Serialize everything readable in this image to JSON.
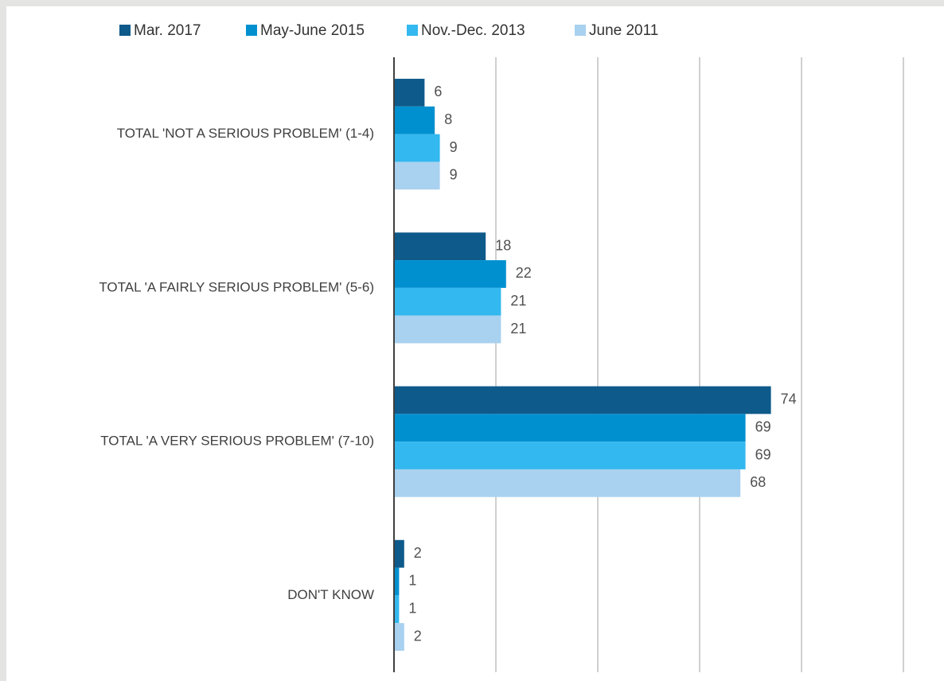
{
  "chart_data": {
    "type": "bar",
    "orientation": "horizontal",
    "categories": [
      "TOTAL 'NOT A SERIOUS PROBLEM' (1-4)",
      "TOTAL 'A FAIRLY SERIOUS PROBLEM' (5-6)",
      "TOTAL 'A VERY SERIOUS PROBLEM' (7-10)",
      "DON'T KNOW"
    ],
    "series": [
      {
        "name": "Mar. 2017",
        "color": "#0e5a8a",
        "values": [
          6,
          18,
          74,
          2
        ]
      },
      {
        "name": "May-June 2015",
        "color": "#0090d0",
        "values": [
          8,
          22,
          69,
          1
        ]
      },
      {
        "name": "Nov.-Dec. 2013",
        "color": "#33b8ef",
        "values": [
          9,
          21,
          69,
          1
        ]
      },
      {
        "name": "June 2011",
        "color": "#a9d1f0",
        "values": [
          9,
          21,
          68,
          2
        ]
      }
    ],
    "xlim": [
      0,
      100
    ],
    "xticks": [
      0,
      20,
      40,
      60,
      80,
      100
    ],
    "grid": true,
    "legend": "top"
  }
}
